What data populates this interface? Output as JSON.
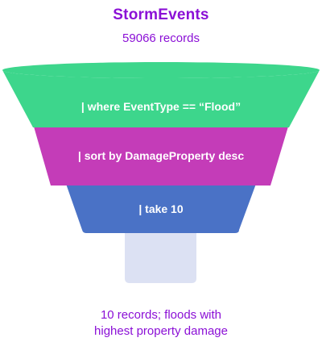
{
  "header": {
    "title": "StormEvents",
    "subtitle": "59066 records"
  },
  "funnel": {
    "stages": [
      {
        "label": "| where EventType == “Flood”",
        "color": "#3dd68c"
      },
      {
        "label": "| sort by DamageProperty desc",
        "color": "#c43cb8"
      },
      {
        "label": "| take 10",
        "color": "#4a72c6"
      }
    ],
    "spout_color": "#dce1f3"
  },
  "footer": {
    "line1": "10 records; floods with",
    "line2": "highest property damage"
  },
  "colors": {
    "title": "#8b10d6",
    "subtitle": "#8b10d6",
    "footer": "#8b10d6",
    "stage_text": "#ffffff"
  }
}
